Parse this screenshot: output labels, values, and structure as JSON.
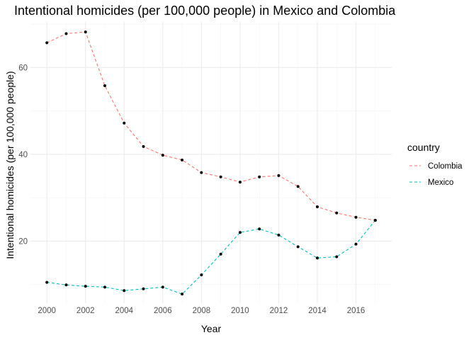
{
  "chart_data": {
    "type": "line",
    "title": "Intentional homicides (per 100,000 people) in Mexico and Colombia",
    "xlabel": "Year",
    "ylabel": "Intentional homicides (per 100,000 people)",
    "x": [
      2000,
      2001,
      2002,
      2003,
      2004,
      2005,
      2006,
      2007,
      2008,
      2009,
      2010,
      2011,
      2012,
      2013,
      2014,
      2015,
      2016,
      2017
    ],
    "xlim": [
      1999.15,
      2017.85
    ],
    "ylim": [
      5.7,
      70.5
    ],
    "x_ticks": [
      2000,
      2002,
      2004,
      2006,
      2008,
      2010,
      2012,
      2014,
      2016
    ],
    "x_tick_labels": [
      "2000",
      "2002",
      "2004",
      "2006",
      "2008",
      "2010",
      "2012",
      "2014",
      "2016"
    ],
    "y_ticks": [
      20,
      40,
      60
    ],
    "y_tick_labels": [
      "20",
      "40",
      "60"
    ],
    "grid": true,
    "legend": {
      "title": "country",
      "placement": "right"
    },
    "series": [
      {
        "name": "Colombia",
        "color": "#F8766D",
        "values": [
          65.7,
          67.8,
          68.2,
          55.8,
          47.2,
          41.8,
          39.8,
          38.7,
          35.8,
          34.8,
          33.6,
          34.8,
          35.1,
          32.6,
          27.9,
          26.5,
          25.5,
          24.8
        ]
      },
      {
        "name": "Mexico",
        "color": "#00BFC4",
        "values": [
          10.5,
          9.9,
          9.6,
          9.4,
          8.6,
          9.0,
          9.4,
          7.8,
          12.2,
          17.0,
          22.0,
          22.8,
          21.4,
          18.7,
          16.1,
          16.4,
          19.3,
          24.8
        ]
      }
    ]
  }
}
